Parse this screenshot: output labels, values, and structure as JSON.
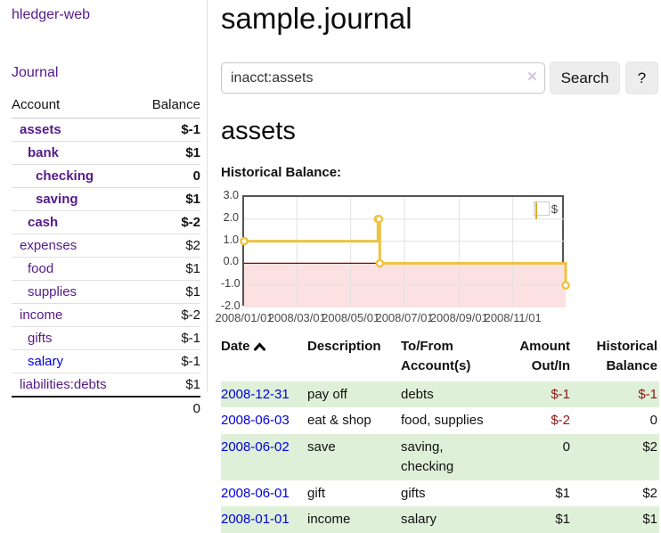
{
  "colors": {
    "accent_purple": "#551A8B",
    "link_blue": "#0000e0",
    "negative_strong": "#8f1515",
    "negative_muted": "#c17676",
    "row_shade_green": "#dff0d8",
    "chart_line_gold": "#EDC240",
    "chart_negative_fill": "#fbe1e1",
    "chart_zero_line": "#990000"
  },
  "sidebar": {
    "brand": "hledger-web",
    "nav_journal": "Journal",
    "table": {
      "account_header": "Account",
      "balance_header": "Balance",
      "rows": [
        {
          "name": "assets",
          "depth": 1,
          "in_account": true,
          "balance": "$-1",
          "negative": true
        },
        {
          "name": "bank",
          "depth": 2,
          "in_account": true,
          "balance": "$1",
          "negative": false
        },
        {
          "name": "checking",
          "depth": 3,
          "in_account": true,
          "balance": "0",
          "negative": false
        },
        {
          "name": "saving",
          "depth": 3,
          "in_account": true,
          "balance": "$1",
          "negative": false
        },
        {
          "name": "cash",
          "depth": 2,
          "in_account": true,
          "balance": "$-2",
          "negative": true
        },
        {
          "name": "expenses",
          "depth": 1,
          "in_account": false,
          "balance": "$2",
          "negative": false
        },
        {
          "name": "food",
          "depth": 2,
          "in_account": false,
          "balance": "$1",
          "negative": false
        },
        {
          "name": "supplies",
          "depth": 2,
          "in_account": false,
          "balance": "$1",
          "negative": false
        },
        {
          "name": "income",
          "depth": 1,
          "in_account": false,
          "balance": "$-2",
          "negative": true
        },
        {
          "name": "gifts",
          "depth": 2,
          "in_account": false,
          "balance": "$-1",
          "negative": true
        },
        {
          "name": "salary",
          "depth": 2,
          "in_account": false,
          "balance": "$-1",
          "negative": true,
          "unvisited": true
        },
        {
          "name": "liabilities:debts",
          "depth": 1,
          "in_account": false,
          "balance": "$1",
          "negative": false
        }
      ],
      "total": "0"
    }
  },
  "header": {
    "title": "sample.journal"
  },
  "search": {
    "value": "inacct:assets",
    "clear_icon": "×",
    "button_label": "Search",
    "help_label": "?"
  },
  "account_page": {
    "heading": "assets",
    "chart_label": "Historical Balance:"
  },
  "chart_data": {
    "type": "line",
    "title": "Historical Balance:",
    "steps": true,
    "legend": "$",
    "legend_position": "top-right",
    "grid": true,
    "ylim": [
      -2.0,
      3.0
    ],
    "yticks": [
      "3.0",
      "2.0",
      "1.0",
      "0.0",
      "-1.0",
      "-2.0"
    ],
    "xticks": [
      "2008/01/01",
      "2008/03/01",
      "2008/05/01",
      "2008/07/01",
      "2008/09/01",
      "2008/11/01"
    ],
    "xrange": [
      "2008-01-01",
      "2008-12-31"
    ],
    "series": [
      {
        "name": "$",
        "color": "#EDC240",
        "points": [
          [
            "2008-01-01",
            1
          ],
          [
            "2008-06-01",
            2
          ],
          [
            "2008-06-02",
            2
          ],
          [
            "2008-06-03",
            0
          ],
          [
            "2008-12-31",
            -1
          ]
        ]
      }
    ],
    "negative_region_shaded": true
  },
  "register": {
    "headers": {
      "date": "Date",
      "description": "Description",
      "accounts": "To/From Account(s)",
      "amount": "Amount Out/In",
      "balance": "Historical Balance"
    },
    "rows": [
      {
        "date": "2008-12-31",
        "description": "pay off",
        "accounts": "debts",
        "amount": "$-1",
        "amount_negative": true,
        "balance": "$-1",
        "balance_negative": true,
        "shaded": true
      },
      {
        "date": "2008-06-03",
        "description": "eat & shop",
        "accounts": "food, supplies",
        "amount": "$-2",
        "amount_negative": true,
        "balance": "0",
        "balance_negative": false,
        "shaded": false
      },
      {
        "date": "2008-06-02",
        "description": "save",
        "accounts": "saving, checking",
        "amount": "0",
        "amount_negative": false,
        "balance": "$2",
        "balance_negative": false,
        "shaded": true
      },
      {
        "date": "2008-06-01",
        "description": "gift",
        "accounts": "gifts",
        "amount": "$1",
        "amount_negative": false,
        "balance": "$2",
        "balance_negative": false,
        "shaded": false
      },
      {
        "date": "2008-01-01",
        "description": "income",
        "accounts": "salary",
        "amount": "$1",
        "amount_negative": false,
        "balance": "$1",
        "balance_negative": false,
        "shaded": true
      }
    ]
  }
}
